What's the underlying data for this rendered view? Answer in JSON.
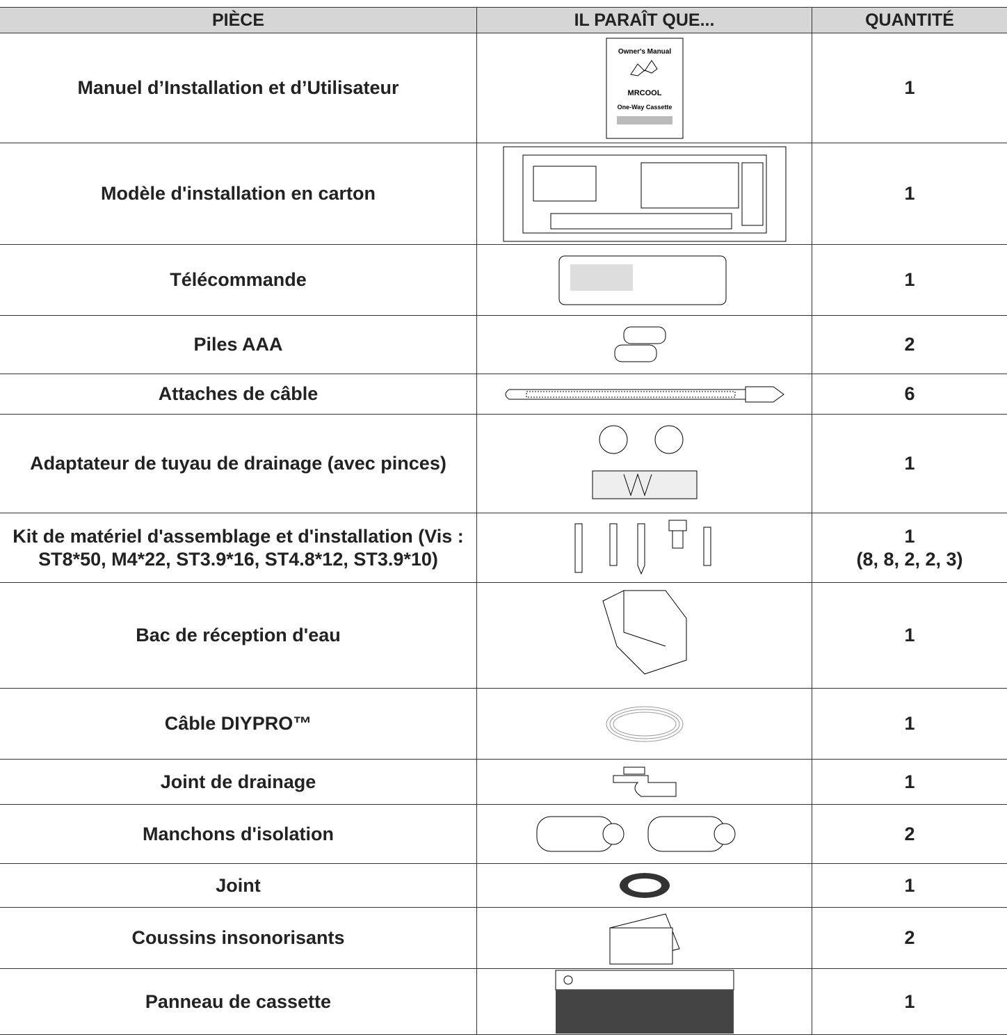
{
  "table": {
    "headers": [
      "PIÈCE",
      "IL PARAÎT QUE...",
      "QUANTITÉ"
    ],
    "rows": [
      {
        "part": "Manuel d’Installation et d’Utilisateur",
        "quantity": 1
      },
      {
        "part": "Modèle d'installation en carton",
        "quantity": 1
      },
      {
        "part": "Télécommande",
        "quantity": 1
      },
      {
        "part": "Piles AAA",
        "quantity": 2
      },
      {
        "part": "Attaches de câble",
        "quantity": 6
      },
      {
        "part": "Adaptateur de tuyau de drainage (avec pinces)",
        "quantity": 1
      },
      {
        "part": "Kit de matériel d'assemblage et d'installation (Vis : ST8*50, M4*22, ST3.9*16, ST4.8*12, ST3.9*10)",
        "quantity": 1,
        "quantity_note": "(8, 8, 2, 2, 3)"
      },
      {
        "part": "Bac de réception d'eau",
        "quantity": 1
      },
      {
        "part": "Câble DIYPRO™",
        "quantity": 1
      },
      {
        "part": "Joint de drainage",
        "quantity": 1
      },
      {
        "part": "Manchons d'isolation",
        "quantity": 2
      },
      {
        "part": "Joint",
        "quantity": 1
      },
      {
        "part": "Coussins insonorisants",
        "quantity": 2
      },
      {
        "part": "Panneau de cassette",
        "quantity": 1
      }
    ]
  },
  "manual": {
    "title": "Owner's Manual",
    "brand": "MRCOOL",
    "model": "One-Way Cassette"
  }
}
